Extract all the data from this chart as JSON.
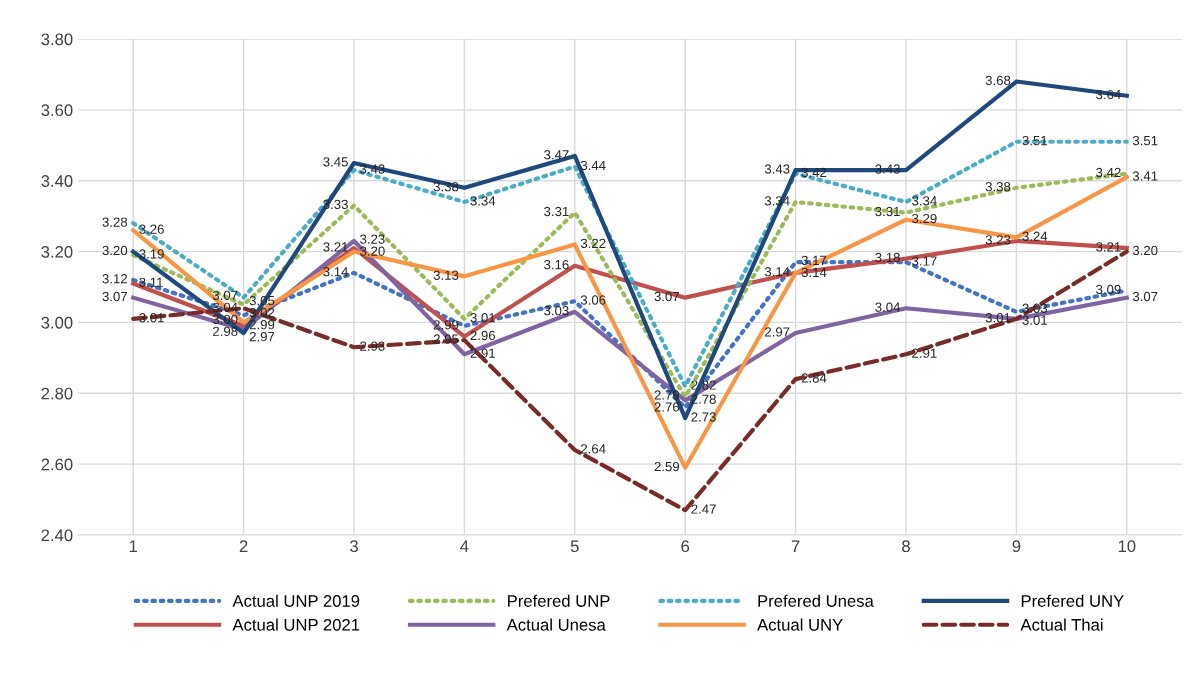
{
  "chart_data": {
    "type": "line",
    "categories": [
      "1",
      "2",
      "3",
      "4",
      "5",
      "6",
      "7",
      "8",
      "9",
      "10"
    ],
    "ylim": [
      2.4,
      3.8
    ],
    "yticks": [
      {
        "value": 2.4,
        "label": "2.40"
      },
      {
        "value": 2.6,
        "label": "2.60"
      },
      {
        "value": 2.8,
        "label": "2.80"
      },
      {
        "value": 3.0,
        "label": "3.00"
      },
      {
        "value": 3.2,
        "label": "3.20"
      },
      {
        "value": 3.4,
        "label": "3.40"
      },
      {
        "value": 3.6,
        "label": "3.60"
      },
      {
        "value": 3.8,
        "label": "3.80"
      }
    ],
    "grid": true,
    "legend": "bottom",
    "marker": "none",
    "series": [
      {
        "name": "Actual UNP 2019",
        "color": "#4472c4",
        "line_style": "dotted",
        "values": [
          3.12,
          3.02,
          3.14,
          2.99,
          3.06,
          2.76,
          3.17,
          3.17,
          3.03,
          3.09
        ],
        "value_labels": [
          "3.12",
          "3.02",
          "3.14",
          "2.99",
          "3.06",
          "2.76",
          "3.17",
          "3.17",
          "3.03",
          "3.09"
        ]
      },
      {
        "name": "Actual UNP 2021",
        "color": "#c0504d",
        "line_style": "solid",
        "values": [
          3.11,
          2.99,
          3.21,
          2.96,
          3.16,
          3.07,
          3.14,
          3.18,
          3.23,
          3.21
        ],
        "value_labels": [
          "3.11",
          "2.99",
          "3.21",
          "2.96",
          "3.16",
          "3.07",
          "3.14",
          "3.18",
          "3.23",
          "3.21"
        ]
      },
      {
        "name": "Prefered UNP",
        "color": "#9bbb59",
        "line_style": "dotted",
        "values": [
          3.19,
          3.05,
          3.33,
          3.01,
          3.31,
          2.79,
          3.34,
          3.31,
          3.38,
          3.42
        ],
        "value_labels": [
          "3.19",
          "3.05",
          "3.33",
          "3.01",
          "3.31",
          "2.79",
          "3.34",
          "3.31",
          "3.38",
          "3.42"
        ]
      },
      {
        "name": "Actual Unesa",
        "color": "#8064a2",
        "line_style": "solid",
        "values": [
          3.07,
          2.98,
          3.23,
          2.91,
          3.03,
          2.78,
          2.97,
          3.04,
          3.01,
          3.07
        ],
        "value_labels": [
          "3.07",
          "2.98",
          "3.23",
          "2.91",
          "3.03",
          "2.78",
          "2.97",
          "3.04",
          "3.01",
          "3.07"
        ]
      },
      {
        "name": "Prefered Unesa",
        "color": "#4bacc6",
        "line_style": "dotted",
        "values": [
          3.28,
          3.07,
          3.43,
          3.34,
          3.44,
          2.82,
          3.42,
          3.34,
          3.51,
          3.51
        ],
        "value_labels": [
          "3.28",
          "3.07",
          "3.43",
          "3.34",
          "3.44",
          "2.82",
          "3.42",
          "3.34",
          "3.51",
          "3.51"
        ]
      },
      {
        "name": "Actual UNY",
        "color": "#f79646",
        "line_style": "solid",
        "values": [
          3.26,
          3.0,
          3.2,
          3.13,
          3.22,
          2.59,
          3.14,
          3.29,
          3.24,
          3.41
        ],
        "value_labels": [
          "3.26",
          "3.00",
          "3.20",
          "3.13",
          "3.22",
          "2.59",
          "3.14",
          "3.29",
          "3.24",
          "3.41"
        ]
      },
      {
        "name": "Prefered UNY",
        "color": "#1f497d",
        "line_style": "solid",
        "values": [
          3.2,
          2.97,
          3.45,
          3.38,
          3.47,
          2.73,
          3.43,
          3.43,
          3.68,
          3.64
        ],
        "value_labels": [
          "3.20",
          "2.97",
          "3.45",
          "3.38",
          "3.47",
          "2.73",
          "3.43",
          "3.43",
          "3.68",
          "3.64"
        ]
      },
      {
        "name": "Actual Thai",
        "color": "#772c2a",
        "line_style": "dashed",
        "values": [
          3.01,
          3.04,
          2.93,
          2.95,
          2.64,
          2.47,
          2.84,
          2.91,
          3.01,
          3.2
        ],
        "value_labels": [
          "3.01",
          "3.04",
          "2.93",
          "2.95",
          "2.64",
          "2.47",
          "2.84",
          "2.91",
          "3.01",
          "3.20"
        ]
      }
    ]
  }
}
